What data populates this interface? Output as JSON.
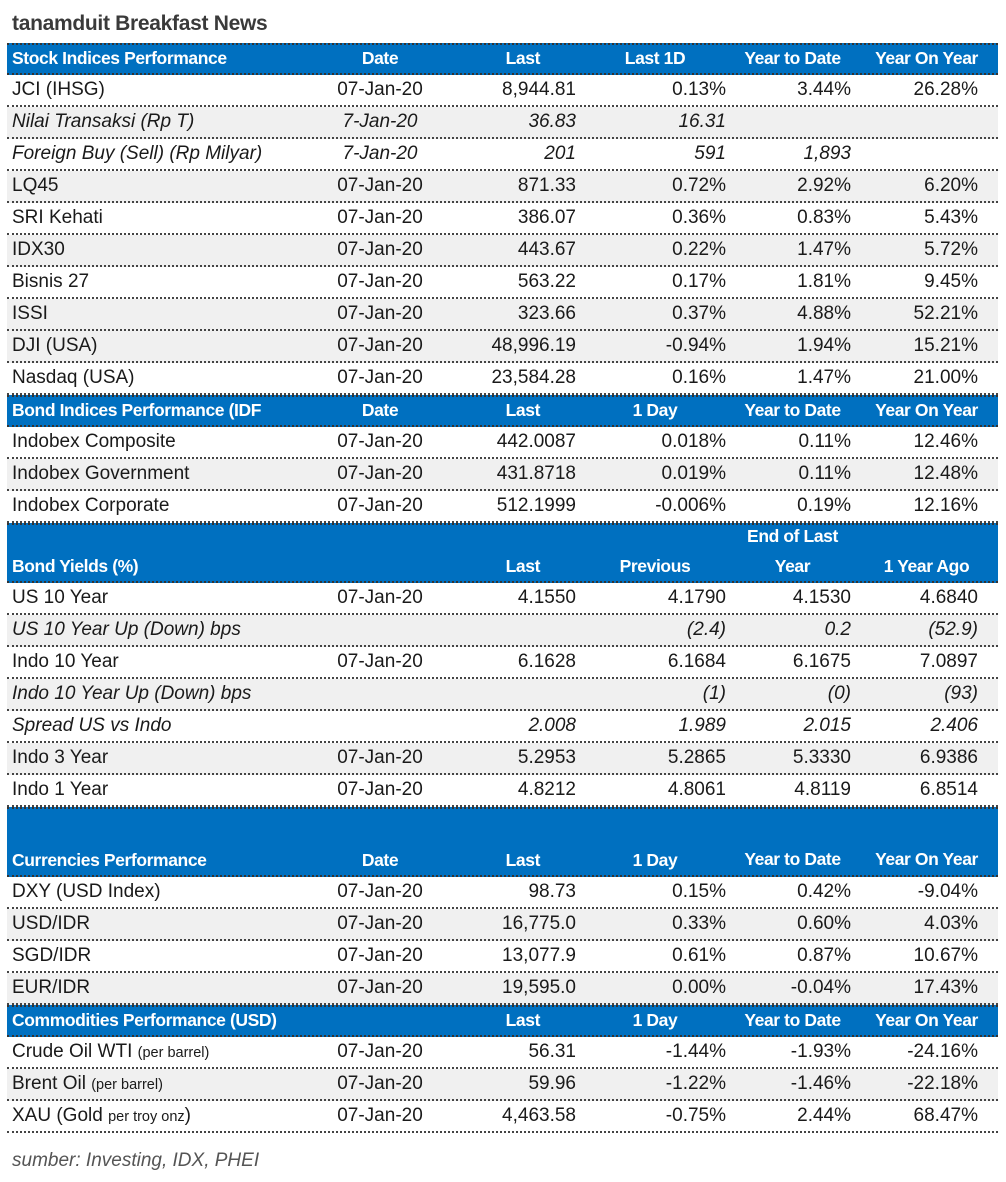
{
  "title": "tanamduit Breakfast News",
  "footer": "sumber: Investing, IDX, PHEI",
  "colors": {
    "header_bg": "#0070c0",
    "header_text": "#ffffff",
    "shade": "#f0f0f0"
  },
  "sections": [
    {
      "header": [
        "Stock Indices Performance",
        "Date",
        "Last",
        "Last 1D",
        "Year to Date",
        "Year On Year"
      ],
      "header_height": "single",
      "rows": [
        {
          "cells": [
            "JCI (IHSG)",
            "07-Jan-20",
            "8,944.81",
            "0.13%",
            "3.44%",
            "26.28%"
          ],
          "shade": false
        },
        {
          "cells": [
            "Nilai Transaksi (Rp T)",
            "7-Jan-20",
            "36.83",
            "16.31",
            "",
            ""
          ],
          "shade": true,
          "italic": true
        },
        {
          "cells": [
            "Foreign Buy (Sell) (Rp Milyar)",
            "7-Jan-20",
            "201",
            "591",
            "1,893",
            ""
          ],
          "shade": false,
          "italic": true
        },
        {
          "cells": [
            "LQ45",
            "07-Jan-20",
            "871.33",
            "0.72%",
            "2.92%",
            "6.20%"
          ],
          "shade": true
        },
        {
          "cells": [
            "SRI Kehati",
            "07-Jan-20",
            "386.07",
            "0.36%",
            "0.83%",
            "5.43%"
          ],
          "shade": false
        },
        {
          "cells": [
            "IDX30",
            "07-Jan-20",
            "443.67",
            "0.22%",
            "1.47%",
            "5.72%"
          ],
          "shade": true
        },
        {
          "cells": [
            "Bisnis 27",
            "07-Jan-20",
            "563.22",
            "0.17%",
            "1.81%",
            "9.45%"
          ],
          "shade": false
        },
        {
          "cells": [
            "ISSI",
            "07-Jan-20",
            "323.66",
            "0.37%",
            "4.88%",
            "52.21%"
          ],
          "shade": true
        },
        {
          "cells": [
            "DJI (USA)",
            "07-Jan-20",
            "48,996.19",
            "-0.94%",
            "1.94%",
            "15.21%"
          ],
          "shade": true
        },
        {
          "cells": [
            "Nasdaq (USA)",
            "07-Jan-20",
            "23,584.28",
            "0.16%",
            "1.47%",
            "21.00%"
          ],
          "shade": false
        }
      ]
    },
    {
      "header": [
        "Bond Indices Performance (IDF",
        "Date",
        "Last",
        "1 Day",
        "Year to Date",
        "Year On Year"
      ],
      "header_height": "single",
      "rows": [
        {
          "cells": [
            "Indobex Composite",
            "07-Jan-20",
            "442.0087",
            "0.018%",
            "0.11%",
            "12.46%"
          ],
          "shade": false
        },
        {
          "cells": [
            "Indobex Government",
            "07-Jan-20",
            "431.8718",
            "0.019%",
            "0.11%",
            "12.48%"
          ],
          "shade": true
        },
        {
          "cells": [
            "Indobex Corporate",
            "07-Jan-20",
            "512.1999",
            "-0.006%",
            "0.19%",
            "12.16%"
          ],
          "shade": false
        }
      ]
    },
    {
      "header": [
        "Bond Yields (%)",
        "",
        "Last",
        "Previous",
        "End of Last Year",
        "1 Year Ago"
      ],
      "header_height": "double",
      "rows": [
        {
          "cells": [
            "US 10 Year",
            "07-Jan-20",
            "4.1550",
            "4.1790",
            "4.1530",
            "4.6840"
          ],
          "shade": false
        },
        {
          "cells": [
            "US 10 Year Up (Down) bps",
            "",
            "",
            "(2.4)",
            "0.2",
            "(52.9)"
          ],
          "shade": true,
          "italic": true
        },
        {
          "cells": [
            "Indo 10 Year",
            "07-Jan-20",
            "6.1628",
            "6.1684",
            "6.1675",
            "7.0897"
          ],
          "shade": false
        },
        {
          "cells": [
            "Indo 10 Year Up (Down) bps",
            "",
            "",
            "(1)",
            "(0)",
            "(93)"
          ],
          "shade": true,
          "italic": true
        },
        {
          "cells": [
            "Spread US vs Indo",
            "",
            "2.008",
            "1.989",
            "2.015",
            "2.406"
          ],
          "shade": false,
          "italic": true
        },
        {
          "cells": [
            "Indo 3 Year",
            "07-Jan-20",
            "5.2953",
            "5.2865",
            "5.3330",
            "6.9386"
          ],
          "shade": true
        },
        {
          "cells": [
            "Indo 1 Year",
            "07-Jan-20",
            "4.8212",
            "4.8061",
            "4.8119",
            "6.8514"
          ],
          "shade": false
        }
      ]
    },
    {
      "header": [
        "Currencies Performance",
        "Date",
        "Last",
        "1 Day",
        "Year to Date",
        "Year On Year"
      ],
      "header_height": "tall",
      "rows": [
        {
          "cells": [
            "DXY (USD Index)",
            "07-Jan-20",
            "98.73",
            "0.15%",
            "0.42%",
            "-9.04%"
          ],
          "shade": false
        },
        {
          "cells": [
            "USD/IDR",
            "07-Jan-20",
            "16,775.0",
            "0.33%",
            "0.60%",
            "4.03%"
          ],
          "shade": true
        },
        {
          "cells": [
            "SGD/IDR",
            "07-Jan-20",
            "13,077.9",
            "0.61%",
            "0.87%",
            "10.67%"
          ],
          "shade": false
        },
        {
          "cells": [
            "EUR/IDR",
            "07-Jan-20",
            "19,595.0",
            "0.00%",
            "-0.04%",
            "17.43%"
          ],
          "shade": true
        }
      ]
    },
    {
      "header": [
        "Commodities Performance (USD)",
        "",
        "Last",
        "1 Day",
        "Year to Date",
        "Year On Year"
      ],
      "header_height": "single",
      "rows": [
        {
          "cells": [
            "Crude Oil WTI",
            "07-Jan-20",
            "56.31",
            "-1.44%",
            "-1.93%",
            "-24.16%"
          ],
          "note": "(per barrel)",
          "suffix": "",
          "shade": false
        },
        {
          "cells": [
            "Brent Oil",
            "07-Jan-20",
            "59.96",
            "-1.22%",
            "-1.46%",
            "-22.18%"
          ],
          "note": "(per barrel)",
          "suffix": "",
          "shade": true
        },
        {
          "cells": [
            "XAU (Gold",
            "07-Jan-20",
            "4,463.58",
            "-0.75%",
            "2.44%",
            "68.47%"
          ],
          "note": "per troy onz",
          "suffix": ")",
          "shade": false
        }
      ]
    }
  ]
}
